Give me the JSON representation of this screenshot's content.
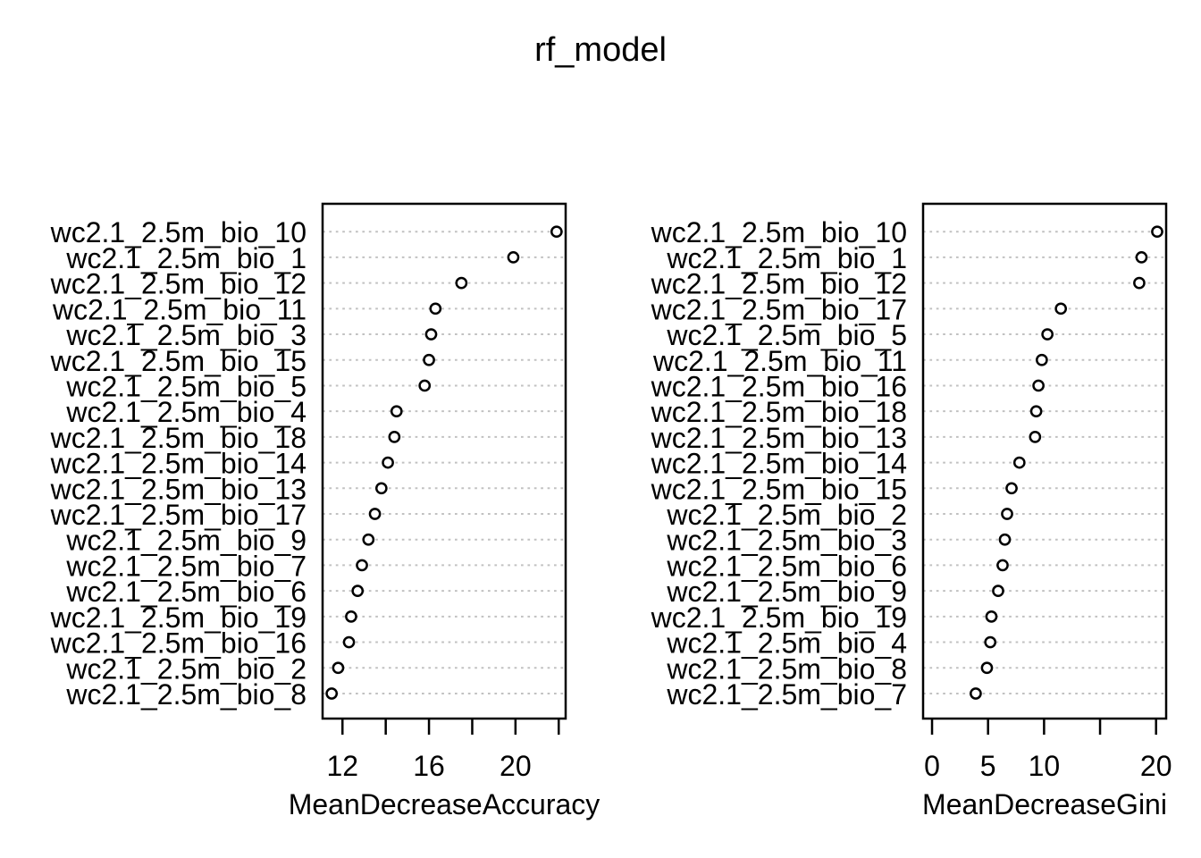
{
  "title": "rf_model",
  "colors": {
    "foreground": "#000000",
    "background": "#ffffff",
    "gridline": "#c1c1c1",
    "point_fill": "#ffffff"
  },
  "chart_data": [
    {
      "type": "scatter",
      "subtype": "dot-chart",
      "orientation": "horizontal",
      "xlabel": "MeanDecreaseAccuracy",
      "categories": [
        "wc2.1_2.5m_bio_10",
        "wc2.1_2.5m_bio_1",
        "wc2.1_2.5m_bio_12",
        "wc2.1_2.5m_bio_11",
        "wc2.1_2.5m_bio_3",
        "wc2.1_2.5m_bio_15",
        "wc2.1_2.5m_bio_5",
        "wc2.1_2.5m_bio_4",
        "wc2.1_2.5m_bio_18",
        "wc2.1_2.5m_bio_14",
        "wc2.1_2.5m_bio_13",
        "wc2.1_2.5m_bio_17",
        "wc2.1_2.5m_bio_9",
        "wc2.1_2.5m_bio_7",
        "wc2.1_2.5m_bio_6",
        "wc2.1_2.5m_bio_19",
        "wc2.1_2.5m_bio_16",
        "wc2.1_2.5m_bio_2",
        "wc2.1_2.5m_bio_8"
      ],
      "values": [
        21.9,
        19.9,
        17.5,
        16.3,
        16.1,
        16.0,
        15.8,
        14.5,
        14.4,
        14.1,
        13.8,
        13.5,
        13.2,
        12.9,
        12.7,
        12.4,
        12.3,
        11.8,
        11.5
      ],
      "xlim": [
        11.08,
        22.32
      ],
      "xticks": [
        12,
        14,
        16,
        18,
        20,
        22
      ],
      "xtick_labels": [
        "12",
        "",
        "16",
        "",
        "20",
        ""
      ],
      "grid": "dotted-horizontal",
      "legend": "none",
      "point_marker": "open-circle"
    },
    {
      "type": "scatter",
      "subtype": "dot-chart",
      "orientation": "horizontal",
      "xlabel": "MeanDecreaseGini",
      "categories": [
        "wc2.1_2.5m_bio_10",
        "wc2.1_2.5m_bio_1",
        "wc2.1_2.5m_bio_12",
        "wc2.1_2.5m_bio_17",
        "wc2.1_2.5m_bio_5",
        "wc2.1_2.5m_bio_11",
        "wc2.1_2.5m_bio_16",
        "wc2.1_2.5m_bio_18",
        "wc2.1_2.5m_bio_13",
        "wc2.1_2.5m_bio_14",
        "wc2.1_2.5m_bio_15",
        "wc2.1_2.5m_bio_2",
        "wc2.1_2.5m_bio_3",
        "wc2.1_2.5m_bio_6",
        "wc2.1_2.5m_bio_9",
        "wc2.1_2.5m_bio_19",
        "wc2.1_2.5m_bio_4",
        "wc2.1_2.5m_bio_8",
        "wc2.1_2.5m_bio_7"
      ],
      "values": [
        20.1,
        18.7,
        18.5,
        11.5,
        10.3,
        9.8,
        9.5,
        9.3,
        9.2,
        7.8,
        7.1,
        6.7,
        6.5,
        6.3,
        5.9,
        5.3,
        5.2,
        4.9,
        3.9
      ],
      "xlim": [
        -0.8,
        20.9
      ],
      "xticks": [
        0,
        5,
        10,
        15,
        20
      ],
      "xtick_labels": [
        "0",
        "5",
        "10",
        "",
        "20"
      ],
      "grid": "dotted-horizontal",
      "legend": "none",
      "point_marker": "open-circle"
    }
  ]
}
